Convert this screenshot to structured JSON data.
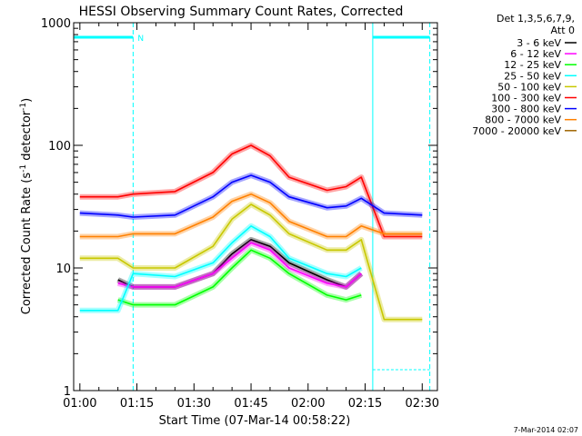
{
  "chart_data": {
    "type": "line",
    "title": "HESSI Observing Summary Count Rates, Corrected",
    "xlabel": "Start Time (07-Mar-14 00:58:22)",
    "ylabel": "Corrected Count Rate (s",
    "ylabel_sup1": "-1",
    "ylabel_mid": " detector",
    "ylabel_sup2": "-1",
    "ylabel_end": ")",
    "y_scale": "log",
    "xlim": [
      "00:58:22",
      "02:34"
    ],
    "ylim": [
      1,
      1000
    ],
    "x_ticks": [
      "01:00",
      "01:15",
      "01:30",
      "01:45",
      "02:00",
      "02:15",
      "02:30"
    ],
    "y_ticks": [
      "1",
      "10",
      "100",
      "1000"
    ],
    "legend_header": [
      "Det 1,3,5,6,7,9,",
      "Att 0"
    ],
    "legend_placement": "right",
    "footer": "7-Mar-2014 02:07",
    "marker_label": "N",
    "series": [
      {
        "name": "3 - 6 keV",
        "color": "#000000",
        "x": [
          "01:10",
          "01:14",
          "01:25",
          "01:35",
          "01:40",
          "01:45",
          "01:50",
          "01:55",
          "02:05",
          "02:10",
          "02:14"
        ],
        "y": [
          8,
          7,
          7,
          9,
          13,
          17,
          15,
          11,
          8,
          7,
          9
        ]
      },
      {
        "name": "6 - 12 keV",
        "color": "#ff00ff",
        "x": [
          "01:10",
          "01:14",
          "01:25",
          "01:35",
          "01:40",
          "01:45",
          "01:50",
          "01:55",
          "02:05",
          "02:10",
          "02:14"
        ],
        "y": [
          7.5,
          7,
          7,
          9,
          12,
          16,
          14,
          10,
          7.5,
          7,
          9
        ]
      },
      {
        "name": "12 - 25 keV",
        "color": "#00ff00",
        "x": [
          "01:10",
          "01:14",
          "01:25",
          "01:35",
          "01:40",
          "01:45",
          "01:50",
          "01:55",
          "02:05",
          "02:10",
          "02:14"
        ],
        "y": [
          5.5,
          5,
          5,
          7,
          10,
          14,
          12,
          9,
          6,
          5.5,
          6
        ]
      },
      {
        "name": "25 - 50 keV",
        "color": "#00ffff",
        "x": [
          "01:00",
          "01:10",
          "01:14",
          "01:25",
          "01:35",
          "01:40",
          "01:45",
          "01:50",
          "01:55",
          "02:05",
          "02:10",
          "02:14"
        ],
        "y": [
          4.5,
          4.5,
          9,
          8.5,
          11,
          16,
          22,
          18,
          12,
          9,
          8.5,
          10
        ]
      },
      {
        "name": "50 - 100 keV",
        "color": "#c8c800",
        "x": [
          "01:00",
          "01:10",
          "01:14",
          "01:25",
          "01:35",
          "01:40",
          "01:45",
          "01:50",
          "01:55",
          "02:05",
          "02:10",
          "02:14",
          "02:20",
          "02:30"
        ],
        "y": [
          12,
          12,
          10,
          10,
          15,
          25,
          33,
          27,
          19,
          14,
          14,
          17,
          3.8,
          3.8
        ]
      },
      {
        "name": "100 - 300 keV",
        "color": "#ff0000",
        "x": [
          "01:00",
          "01:10",
          "01:14",
          "01:25",
          "01:35",
          "01:40",
          "01:45",
          "01:50",
          "01:55",
          "02:05",
          "02:10",
          "02:14",
          "02:20",
          "02:30"
        ],
        "y": [
          38,
          38,
          40,
          42,
          60,
          85,
          100,
          82,
          55,
          43,
          46,
          55,
          18,
          18
        ]
      },
      {
        "name": "300 - 800 keV",
        "color": "#0000ff",
        "x": [
          "01:00",
          "01:10",
          "01:14",
          "01:25",
          "01:35",
          "01:40",
          "01:45",
          "01:50",
          "01:55",
          "02:05",
          "02:10",
          "02:14",
          "02:20",
          "02:30"
        ],
        "y": [
          28,
          27,
          26,
          27,
          38,
          50,
          57,
          50,
          38,
          31,
          32,
          37,
          28,
          27
        ]
      },
      {
        "name": "800 - 7000 keV",
        "color": "#ff8000",
        "x": [
          "01:00",
          "01:10",
          "01:14",
          "01:25",
          "01:35",
          "01:40",
          "01:45",
          "01:50",
          "01:55",
          "02:05",
          "02:10",
          "02:14",
          "02:20",
          "02:30"
        ],
        "y": [
          18,
          18,
          19,
          19,
          26,
          35,
          40,
          34,
          24,
          18,
          18,
          22,
          19,
          19
        ]
      },
      {
        "name": "7000 - 20000 keV",
        "color": "#a06400",
        "x": [],
        "y": []
      }
    ]
  }
}
